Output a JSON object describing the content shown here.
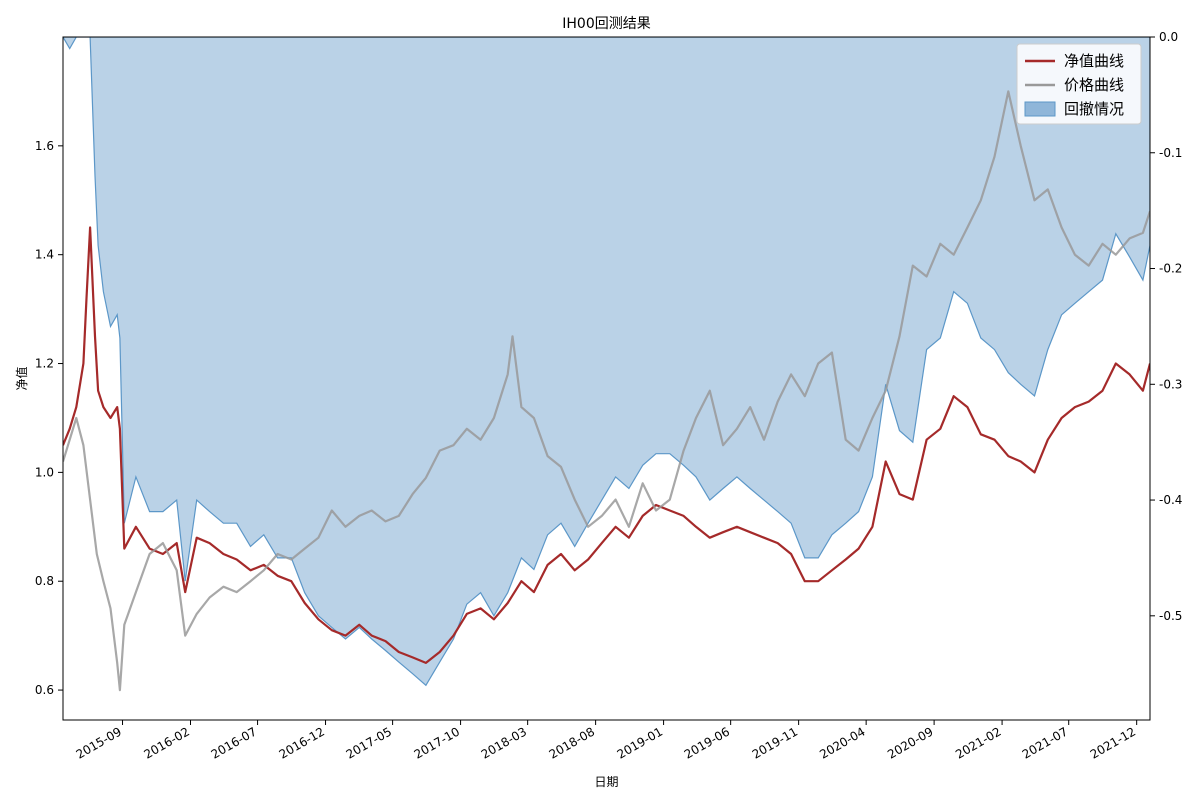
{
  "chart_data": {
    "type": "line",
    "title": "IH00回测结果",
    "xlabel": "日期",
    "ylabel": "净值",
    "xlim": [
      "2015-04-20",
      "2021-12-31"
    ],
    "ylim": [
      0.545,
      1.8
    ],
    "y2lim": [
      -0.59,
      0.0
    ],
    "y_ticks": [
      0.6,
      0.8,
      1.0,
      1.2,
      1.4,
      1.6
    ],
    "y2_ticks": [
      0.0,
      -0.1,
      -0.2,
      -0.3,
      -0.4,
      -0.5
    ],
    "x_ticks": [
      "2015-09",
      "2016-02",
      "2016-07",
      "2016-12",
      "2017-05",
      "2017-10",
      "2018-03",
      "2018-08",
      "2019-01",
      "2019-06",
      "2019-11",
      "2020-04",
      "2020-09",
      "2021-02",
      "2021-07",
      "2021-12"
    ],
    "legend_position": "top-right",
    "grid": false,
    "series": [
      {
        "name": "净值曲线",
        "axis": "left",
        "kind": "line",
        "color": "#a52a2a",
        "x": [
          "2015-04-20",
          "2015-05-05",
          "2015-05-20",
          "2015-06-05",
          "2015-06-12",
          "2015-06-20",
          "2015-07-01",
          "2015-07-08",
          "2015-07-20",
          "2015-08-05",
          "2015-08-20",
          "2015-08-26",
          "2015-09-05",
          "2015-10-01",
          "2015-11-01",
          "2015-12-01",
          "2016-01-01",
          "2016-01-20",
          "2016-02-15",
          "2016-03-15",
          "2016-04-15",
          "2016-05-15",
          "2016-06-15",
          "2016-07-15",
          "2016-08-15",
          "2016-09-15",
          "2016-10-15",
          "2016-11-15",
          "2016-12-15",
          "2017-01-15",
          "2017-02-15",
          "2017-03-15",
          "2017-04-15",
          "2017-05-15",
          "2017-06-15",
          "2017-07-15",
          "2017-08-15",
          "2017-09-15",
          "2017-10-15",
          "2017-11-15",
          "2017-12-15",
          "2018-01-15",
          "2018-02-15",
          "2018-03-15",
          "2018-04-15",
          "2018-05-15",
          "2018-06-15",
          "2018-07-15",
          "2018-08-15",
          "2018-09-15",
          "2018-10-15",
          "2018-11-15",
          "2018-12-15",
          "2019-01-15",
          "2019-02-15",
          "2019-03-15",
          "2019-04-15",
          "2019-05-15",
          "2019-06-15",
          "2019-07-15",
          "2019-08-15",
          "2019-09-15",
          "2019-10-15",
          "2019-11-15",
          "2019-12-15",
          "2020-01-15",
          "2020-02-15",
          "2020-03-15",
          "2020-04-15",
          "2020-05-15",
          "2020-06-15",
          "2020-07-15",
          "2020-08-15",
          "2020-09-15",
          "2020-10-15",
          "2020-11-15",
          "2020-12-15",
          "2021-01-15",
          "2021-02-15",
          "2021-03-15",
          "2021-04-15",
          "2021-05-15",
          "2021-06-15",
          "2021-07-15",
          "2021-08-15",
          "2021-09-15",
          "2021-10-15",
          "2021-11-15",
          "2021-12-15",
          "2021-12-31"
        ],
        "values": [
          1.05,
          1.08,
          1.12,
          1.2,
          1.32,
          1.45,
          1.25,
          1.15,
          1.12,
          1.1,
          1.12,
          1.08,
          0.86,
          0.9,
          0.86,
          0.85,
          0.87,
          0.78,
          0.88,
          0.87,
          0.85,
          0.84,
          0.82,
          0.83,
          0.81,
          0.8,
          0.76,
          0.73,
          0.71,
          0.7,
          0.72,
          0.7,
          0.69,
          0.67,
          0.66,
          0.65,
          0.67,
          0.7,
          0.74,
          0.75,
          0.73,
          0.76,
          0.8,
          0.78,
          0.83,
          0.85,
          0.82,
          0.84,
          0.87,
          0.9,
          0.88,
          0.92,
          0.94,
          0.93,
          0.92,
          0.9,
          0.88,
          0.89,
          0.9,
          0.89,
          0.88,
          0.87,
          0.85,
          0.8,
          0.8,
          0.82,
          0.84,
          0.86,
          0.9,
          1.02,
          0.96,
          0.95,
          1.06,
          1.08,
          1.14,
          1.12,
          1.07,
          1.06,
          1.03,
          1.02,
          1.0,
          1.06,
          1.1,
          1.12,
          1.13,
          1.15,
          1.2,
          1.18,
          1.15,
          1.2
        ]
      },
      {
        "name": "价格曲线",
        "axis": "left",
        "kind": "line",
        "color": "#999999",
        "x": [
          "2015-04-20",
          "2015-05-05",
          "2015-05-20",
          "2015-06-05",
          "2015-06-20",
          "2015-07-05",
          "2015-07-20",
          "2015-08-05",
          "2015-08-20",
          "2015-08-26",
          "2015-09-05",
          "2015-10-01",
          "2015-11-01",
          "2015-12-01",
          "2016-01-01",
          "2016-01-20",
          "2016-02-15",
          "2016-03-15",
          "2016-04-15",
          "2016-05-15",
          "2016-06-15",
          "2016-07-15",
          "2016-08-15",
          "2016-09-15",
          "2016-10-15",
          "2016-11-15",
          "2016-12-15",
          "2017-01-15",
          "2017-02-15",
          "2017-03-15",
          "2017-04-15",
          "2017-05-15",
          "2017-06-15",
          "2017-07-15",
          "2017-08-15",
          "2017-09-15",
          "2017-10-15",
          "2017-11-15",
          "2017-12-15",
          "2018-01-15",
          "2018-01-26",
          "2018-02-15",
          "2018-03-15",
          "2018-04-15",
          "2018-05-15",
          "2018-06-15",
          "2018-07-15",
          "2018-08-15",
          "2018-09-15",
          "2018-10-15",
          "2018-11-15",
          "2018-12-15",
          "2019-01-15",
          "2019-02-15",
          "2019-03-15",
          "2019-04-15",
          "2019-05-15",
          "2019-06-15",
          "2019-07-15",
          "2019-08-15",
          "2019-09-15",
          "2019-10-15",
          "2019-11-15",
          "2019-12-15",
          "2020-01-15",
          "2020-02-15",
          "2020-03-15",
          "2020-04-15",
          "2020-05-15",
          "2020-06-15",
          "2020-07-15",
          "2020-08-15",
          "2020-09-15",
          "2020-10-15",
          "2020-11-15",
          "2020-12-15",
          "2021-01-15",
          "2021-02-15",
          "2021-03-15",
          "2021-04-15",
          "2021-05-15",
          "2021-06-15",
          "2021-07-15",
          "2021-08-15",
          "2021-09-15",
          "2021-10-15",
          "2021-11-15",
          "2021-12-15",
          "2021-12-31"
        ],
        "values": [
          1.02,
          1.06,
          1.1,
          1.05,
          0.95,
          0.85,
          0.8,
          0.75,
          0.65,
          0.6,
          0.72,
          0.78,
          0.85,
          0.87,
          0.82,
          0.7,
          0.74,
          0.77,
          0.79,
          0.78,
          0.8,
          0.82,
          0.85,
          0.84,
          0.86,
          0.88,
          0.93,
          0.9,
          0.92,
          0.93,
          0.91,
          0.92,
          0.96,
          0.99,
          1.04,
          1.05,
          1.08,
          1.06,
          1.1,
          1.18,
          1.25,
          1.12,
          1.1,
          1.03,
          1.01,
          0.95,
          0.9,
          0.92,
          0.95,
          0.9,
          0.98,
          0.93,
          0.95,
          1.04,
          1.1,
          1.15,
          1.05,
          1.08,
          1.12,
          1.06,
          1.13,
          1.18,
          1.14,
          1.2,
          1.22,
          1.06,
          1.04,
          1.1,
          1.15,
          1.25,
          1.38,
          1.36,
          1.42,
          1.4,
          1.45,
          1.5,
          1.58,
          1.7,
          1.6,
          1.5,
          1.52,
          1.45,
          1.4,
          1.38,
          1.42,
          1.4,
          1.43,
          1.44,
          1.48
        ]
      },
      {
        "name": "回撤情况",
        "axis": "right",
        "kind": "area",
        "color": "#8fb6d9",
        "x": [
          "2015-04-20",
          "2015-05-05",
          "2015-05-20",
          "2015-06-05",
          "2015-06-12",
          "2015-06-20",
          "2015-07-01",
          "2015-07-08",
          "2015-07-20",
          "2015-08-05",
          "2015-08-20",
          "2015-08-26",
          "2015-09-05",
          "2015-10-01",
          "2015-11-01",
          "2015-12-01",
          "2016-01-01",
          "2016-01-20",
          "2016-02-15",
          "2016-03-15",
          "2016-04-15",
          "2016-05-15",
          "2016-06-15",
          "2016-07-15",
          "2016-08-15",
          "2016-09-15",
          "2016-10-15",
          "2016-11-15",
          "2016-12-15",
          "2017-01-15",
          "2017-02-15",
          "2017-03-15",
          "2017-04-15",
          "2017-05-15",
          "2017-06-15",
          "2017-07-15",
          "2017-08-15",
          "2017-09-15",
          "2017-10-15",
          "2017-11-15",
          "2017-12-15",
          "2018-01-15",
          "2018-02-15",
          "2018-03-15",
          "2018-04-15",
          "2018-05-15",
          "2018-06-15",
          "2018-07-15",
          "2018-08-15",
          "2018-09-15",
          "2018-10-15",
          "2018-11-15",
          "2018-12-15",
          "2019-01-15",
          "2019-02-15",
          "2019-03-15",
          "2019-04-15",
          "2019-05-15",
          "2019-06-15",
          "2019-07-15",
          "2019-08-15",
          "2019-09-15",
          "2019-10-15",
          "2019-11-15",
          "2019-12-15",
          "2020-01-15",
          "2020-02-15",
          "2020-03-15",
          "2020-04-15",
          "2020-05-15",
          "2020-06-15",
          "2020-07-15",
          "2020-08-15",
          "2020-09-15",
          "2020-10-15",
          "2020-11-15",
          "2020-12-15",
          "2021-01-15",
          "2021-02-15",
          "2021-03-15",
          "2021-04-15",
          "2021-05-15",
          "2021-06-15",
          "2021-07-15",
          "2021-08-15",
          "2021-09-15",
          "2021-10-15",
          "2021-11-15",
          "2021-12-15",
          "2021-12-31"
        ],
        "values": [
          0,
          -0.01,
          0,
          0,
          0,
          0,
          -0.12,
          -0.18,
          -0.22,
          -0.25,
          -0.24,
          -0.26,
          -0.42,
          -0.38,
          -0.41,
          -0.41,
          -0.4,
          -0.47,
          -0.4,
          -0.41,
          -0.42,
          -0.42,
          -0.44,
          -0.43,
          -0.45,
          -0.45,
          -0.48,
          -0.5,
          -0.51,
          -0.52,
          -0.51,
          -0.52,
          -0.53,
          -0.54,
          -0.55,
          -0.56,
          -0.54,
          -0.52,
          -0.49,
          -0.48,
          -0.5,
          -0.48,
          -0.45,
          -0.46,
          -0.43,
          -0.42,
          -0.44,
          -0.42,
          -0.4,
          -0.38,
          -0.39,
          -0.37,
          -0.36,
          -0.36,
          -0.37,
          -0.38,
          -0.4,
          -0.39,
          -0.38,
          -0.39,
          -0.4,
          -0.41,
          -0.42,
          -0.45,
          -0.45,
          -0.43,
          -0.42,
          -0.41,
          -0.38,
          -0.3,
          -0.34,
          -0.35,
          -0.27,
          -0.26,
          -0.22,
          -0.23,
          -0.26,
          -0.27,
          -0.29,
          -0.3,
          -0.31,
          -0.27,
          -0.24,
          -0.23,
          -0.22,
          -0.21,
          -0.17,
          -0.19,
          -0.21,
          -0.18
        ]
      }
    ]
  }
}
